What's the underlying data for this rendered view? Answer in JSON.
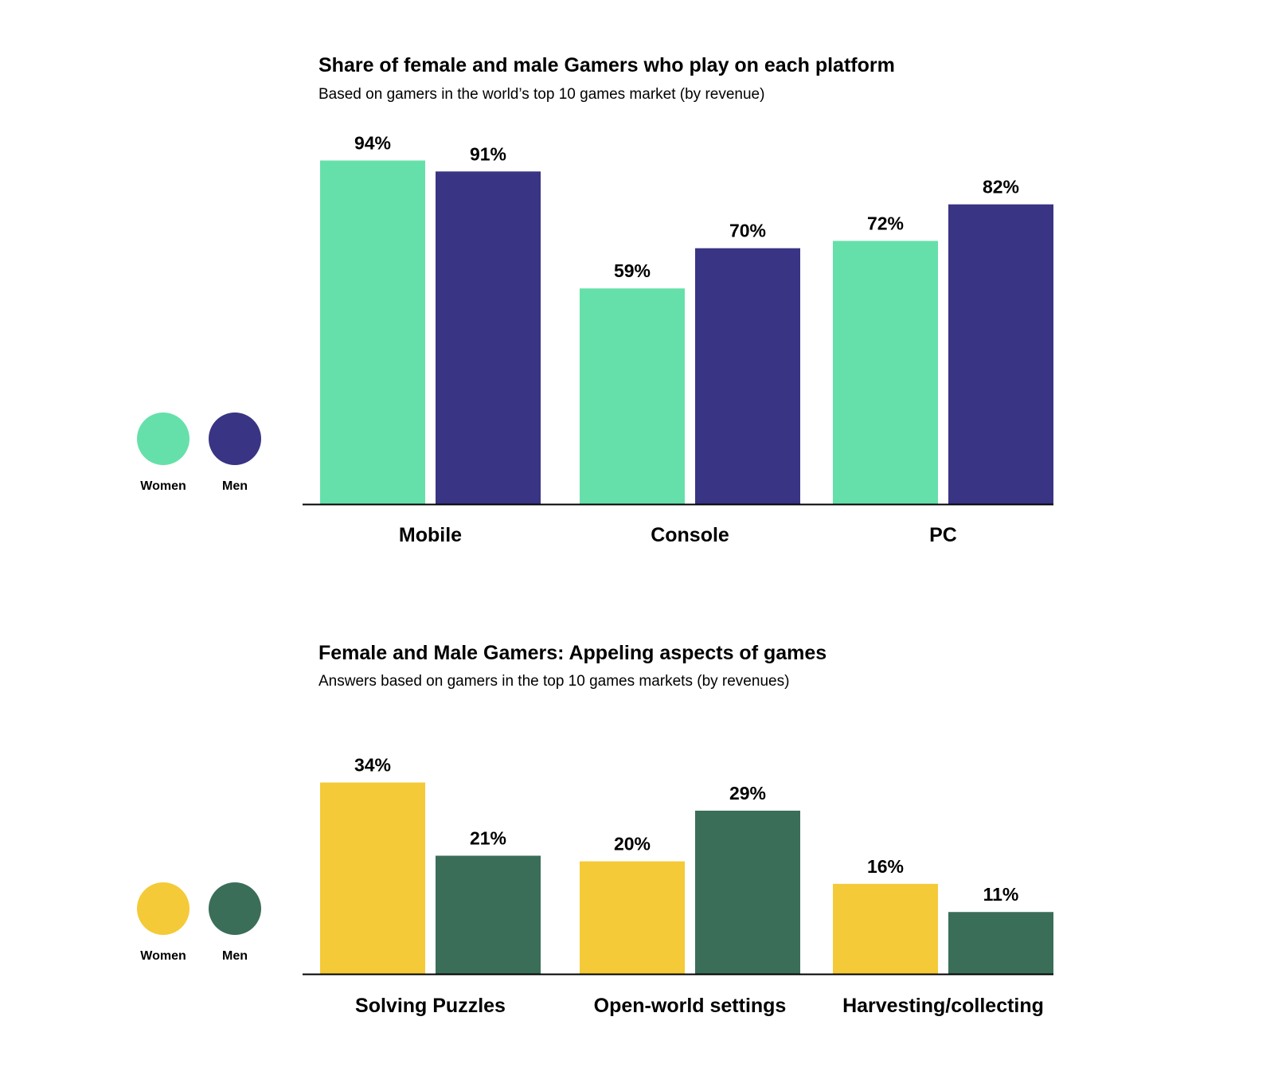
{
  "chart_data": [
    {
      "type": "bar",
      "title": "Share of female and male Gamers who play on each platform",
      "subtitle": "Based on gamers in the world’s top 10 games market (by revenue)",
      "categories": [
        "Mobile",
        "Console",
        "PC"
      ],
      "series": [
        {
          "name": "Women",
          "values": [
            94,
            59,
            72
          ],
          "labels": [
            "94%",
            "59%",
            "72%"
          ],
          "color": "#66e0aa"
        },
        {
          "name": "Men",
          "values": [
            91,
            70,
            82
          ],
          "labels": [
            "91%",
            "70%",
            "82%"
          ],
          "color": "#3a3484"
        }
      ],
      "ylim": [
        0,
        100
      ],
      "value_unit": "%",
      "grid": false,
      "legend_position": "left"
    },
    {
      "type": "bar",
      "title": "Female and Male Gamers: Appeling aspects of games",
      "subtitle": "Answers based on gamers in the top 10 games markets (by revenues)",
      "categories": [
        "Solving Puzzles",
        "Open-world settings",
        "Harvesting/collecting"
      ],
      "series": [
        {
          "name": "Women",
          "values": [
            34,
            20,
            16
          ],
          "labels": [
            "34%",
            "20%",
            "16%"
          ],
          "color": "#f5ca38"
        },
        {
          "name": "Men",
          "values": [
            21,
            29,
            11
          ],
          "labels": [
            "21%",
            "29%",
            "11%"
          ],
          "color": "#3b6e59"
        }
      ],
      "ylim": [
        0,
        40
      ],
      "value_unit": "%",
      "grid": false,
      "legend_position": "left"
    }
  ]
}
